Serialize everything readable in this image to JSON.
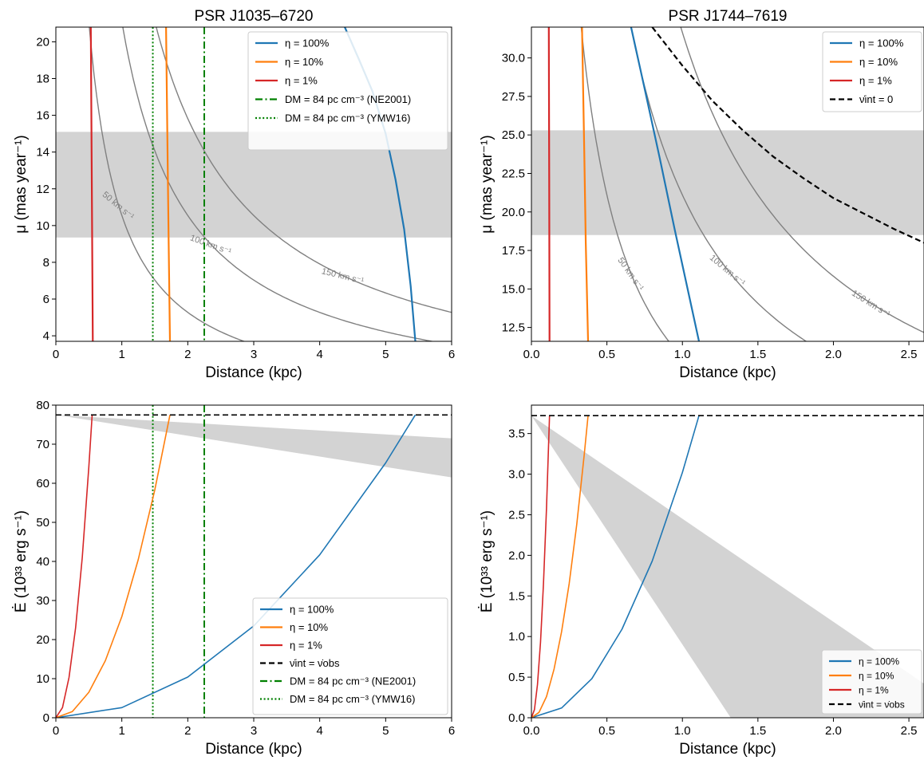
{
  "colors": {
    "eta100": "#1f77b4",
    "eta10": "#ff7f0e",
    "eta1": "#d62728",
    "dm": "#008000",
    "contour": "#808080",
    "band": "#d3d3d3",
    "dashed": "#000000"
  },
  "chart_data": [
    {
      "type": "line",
      "title": "PSR J1035–6720",
      "xlabel": "Distance (kpc)",
      "ylabel": "μ (mas year⁻¹)",
      "xlim": [
        0,
        6
      ],
      "ylim": [
        3.7,
        20.8
      ],
      "xticks": [
        "0",
        "1",
        "2",
        "3",
        "4",
        "5",
        "6"
      ],
      "yticks": [
        "4",
        "6",
        "8",
        "10",
        "12",
        "14",
        "16",
        "18",
        "20"
      ],
      "band": {
        "y": [
          9.35,
          15.1
        ]
      },
      "legend_position": "top-right",
      "series": [
        {
          "name": "η = 100%",
          "color": "#1f77b4",
          "x": [
            4.38,
            4.6,
            4.8,
            5.0,
            5.15,
            5.28,
            5.38,
            5.45
          ],
          "y": [
            20.8,
            19.0,
            17.3,
            15.0,
            12.5,
            9.8,
            6.7,
            3.7
          ]
        },
        {
          "name": "η = 10%",
          "color": "#ff7f0e",
          "x": [
            1.67,
            1.69,
            1.71,
            1.73
          ],
          "y": [
            20.8,
            15.0,
            9.0,
            3.7
          ]
        },
        {
          "name": "η = 1%",
          "color": "#d62728",
          "x": [
            0.53,
            0.545,
            0.56
          ],
          "y": [
            20.8,
            12.0,
            3.7
          ]
        }
      ],
      "vlines": [
        {
          "name": "DM = 84 pc cm⁻³ (NE2001)",
          "x": 2.25,
          "style": "dashdot",
          "color": "#008000"
        },
        {
          "name": "DM = 84 pc cm⁻³ (YMW16)",
          "x": 1.47,
          "style": "dotted",
          "color": "#008000"
        }
      ],
      "contours": [
        {
          "label": "50 km s⁻¹",
          "k": 10.55
        },
        {
          "label": "100 km s⁻¹",
          "k": 21.1
        },
        {
          "label": "150 km s⁻¹",
          "k": 31.65
        }
      ]
    },
    {
      "type": "line",
      "title": "PSR J1744–7619",
      "xlabel": "Distance (kpc)",
      "ylabel": "μ (mas year⁻¹)",
      "xlim": [
        0,
        2.6
      ],
      "ylim": [
        11.6,
        32.0
      ],
      "xticks": [
        "0.0",
        "0.5",
        "1.0",
        "1.5",
        "2.0",
        "2.5"
      ],
      "yticks": [
        "12.5",
        "15.0",
        "17.5",
        "20.0",
        "22.5",
        "25.0",
        "27.5",
        "30.0"
      ],
      "band": {
        "y": [
          18.5,
          25.3
        ]
      },
      "legend_position": "top-right",
      "series": [
        {
          "name": "η = 100%",
          "color": "#1f77b4",
          "x": [
            0.66,
            0.75,
            0.85,
            0.95,
            1.05,
            1.11
          ],
          "y": [
            32.0,
            28.0,
            23.5,
            18.8,
            14.3,
            11.6
          ]
        },
        {
          "name": "η = 10%",
          "color": "#ff7f0e",
          "x": [
            0.335,
            0.35,
            0.36,
            0.375
          ],
          "y": [
            32.0,
            24.0,
            18.0,
            11.6
          ]
        },
        {
          "name": "η = 1%",
          "color": "#d62728",
          "x": [
            0.115,
            0.118,
            0.12
          ],
          "y": [
            32.0,
            22.0,
            11.6
          ]
        },
        {
          "name": "ν̇int = 0",
          "color": "#000000",
          "style": "dashed",
          "x": [
            0.8,
            1.0,
            1.2,
            1.4,
            1.6,
            1.8,
            2.0,
            2.2,
            2.4,
            2.6
          ],
          "y": [
            32.0,
            29.5,
            27.2,
            25.3,
            23.6,
            22.2,
            20.9,
            19.9,
            18.9,
            18.0
          ]
        }
      ],
      "contours": [
        {
          "label": "50 km s⁻¹",
          "k": 10.55
        },
        {
          "label": "100 km s⁻¹",
          "k": 21.1
        },
        {
          "label": "150 km s⁻¹",
          "k": 31.65
        }
      ]
    },
    {
      "type": "line",
      "xlabel": "Distance (kpc)",
      "ylabel": "Ė (10³³ erg s⁻¹)",
      "xlim": [
        0,
        6
      ],
      "ylim": [
        0,
        80
      ],
      "xticks": [
        "0",
        "1",
        "2",
        "3",
        "4",
        "5",
        "6"
      ],
      "yticks": [
        "0",
        "10",
        "20",
        "30",
        "40",
        "50",
        "60",
        "70",
        "80"
      ],
      "band": {
        "x": [
          0,
          6
        ],
        "y_top": [
          77.5,
          71.5
        ],
        "y_bottom": [
          77.5,
          61.5
        ]
      },
      "legend_position": "lower-right",
      "series": [
        {
          "name": "η = 100%",
          "color": "#1f77b4",
          "x": [
            0,
            1,
            2,
            3,
            4,
            5,
            5.45
          ],
          "y": [
            0,
            2.6,
            10.4,
            23.5,
            41.7,
            65.2,
            77.5
          ]
        },
        {
          "name": "η = 10%",
          "color": "#ff7f0e",
          "x": [
            0,
            0.25,
            0.5,
            0.75,
            1.0,
            1.25,
            1.5,
            1.73
          ],
          "y": [
            0,
            1.6,
            6.5,
            14.6,
            25.9,
            40.5,
            58.3,
            77.5
          ]
        },
        {
          "name": "η = 1%",
          "color": "#d62728",
          "x": [
            0,
            0.1,
            0.2,
            0.3,
            0.4,
            0.5,
            0.55
          ],
          "y": [
            0,
            2.6,
            10.3,
            23.1,
            41.0,
            64.1,
            77.5
          ]
        },
        {
          "name": "ν̇int = ν̇obs",
          "color": "#000000",
          "style": "dashed",
          "x": [
            0,
            6
          ],
          "y": [
            77.5,
            77.5
          ]
        }
      ],
      "vlines": [
        {
          "name": "DM = 84 pc cm⁻³ (NE2001)",
          "x": 2.25,
          "style": "dashdot",
          "color": "#008000"
        },
        {
          "name": "DM = 84 pc cm⁻³ (YMW16)",
          "x": 1.47,
          "style": "dotted",
          "color": "#008000"
        }
      ]
    },
    {
      "type": "line",
      "xlabel": "Distance (kpc)",
      "ylabel": "Ė (10³³ erg s⁻¹)",
      "xlim": [
        0,
        2.6
      ],
      "ylim": [
        0,
        3.85
      ],
      "xticks": [
        "0.0",
        "0.5",
        "1.0",
        "1.5",
        "2.0",
        "2.5"
      ],
      "yticks": [
        "0.0",
        "0.5",
        "1.0",
        "1.5",
        "2.0",
        "2.5",
        "3.0",
        "3.5"
      ],
      "band": {
        "polygon_x": [
          0,
          2.6,
          2.6,
          1.32
        ],
        "polygon_y": [
          3.72,
          0.42,
          0,
          0
        ]
      },
      "legend_position": "lower-right",
      "series": [
        {
          "name": "η = 100%",
          "color": "#1f77b4",
          "x": [
            0,
            0.2,
            0.4,
            0.6,
            0.8,
            1.0,
            1.11
          ],
          "y": [
            0,
            0.12,
            0.48,
            1.09,
            1.93,
            3.02,
            3.72
          ]
        },
        {
          "name": "η = 10%",
          "color": "#ff7f0e",
          "x": [
            0,
            0.05,
            0.1,
            0.15,
            0.2,
            0.25,
            0.3,
            0.35,
            0.375
          ],
          "y": [
            0,
            0.066,
            0.26,
            0.6,
            1.06,
            1.65,
            2.38,
            3.24,
            3.72
          ]
        },
        {
          "name": "η = 1%",
          "color": "#d62728",
          "x": [
            0,
            0.02,
            0.04,
            0.06,
            0.08,
            0.1,
            0.12
          ],
          "y": [
            0,
            0.1,
            0.41,
            0.93,
            1.65,
            2.58,
            3.72
          ]
        },
        {
          "name": "ν̇int = ν̇obs",
          "color": "#000000",
          "style": "dashed",
          "x": [
            0,
            2.6
          ],
          "y": [
            3.72,
            3.72
          ]
        }
      ]
    }
  ]
}
